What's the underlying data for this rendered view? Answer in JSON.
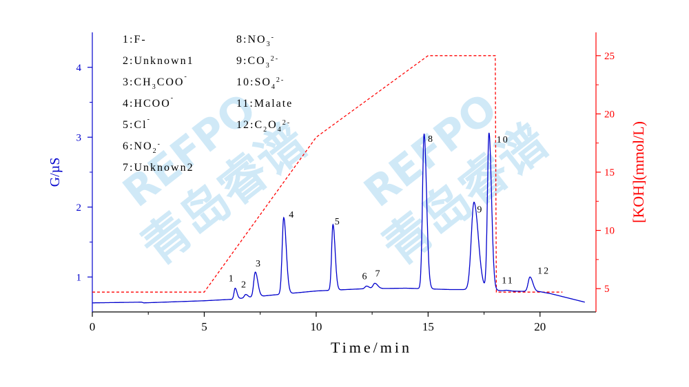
{
  "chart_data": {
    "type": "line",
    "xlabel": "Time/min",
    "ylabel_left": "G/µS",
    "ylabel_right": "[KOH](mmol/L)",
    "x_ticks": [
      "0",
      "5",
      "10",
      "15",
      "20"
    ],
    "y_left_ticks": [
      "1",
      "2",
      "3",
      "4"
    ],
    "y_right_ticks": [
      "5",
      "10",
      "15",
      "20",
      "25"
    ],
    "xlim": [
      0,
      22.5
    ],
    "ylim_left": [
      0.5,
      4.5
    ],
    "ylim_right": [
      3,
      27
    ],
    "colors": {
      "signal": "#0000cc",
      "koh": "#ff0000"
    },
    "series": [
      {
        "name": "Conductivity",
        "axis": "left",
        "baseline": [
          [
            0,
            0.63
          ],
          [
            2.2,
            0.64
          ],
          [
            2.3,
            0.63
          ],
          [
            5,
            0.66
          ],
          [
            6.2,
            0.68
          ],
          [
            8,
            0.74
          ],
          [
            10,
            0.8
          ],
          [
            12,
            0.83
          ],
          [
            14,
            0.84
          ],
          [
            16,
            0.82
          ],
          [
            17.5,
            0.82
          ],
          [
            18.5,
            0.8
          ],
          [
            20,
            0.79
          ],
          [
            20.5,
            0.76
          ],
          [
            22,
            0.64
          ]
        ],
        "peaks": [
          {
            "label": "1",
            "rt": 6.38,
            "height": 0.84
          },
          {
            "label": "2",
            "rt": 6.85,
            "height": 0.75
          },
          {
            "label": "3",
            "rt": 7.28,
            "height": 1.07
          },
          {
            "label": "4",
            "rt": 8.55,
            "height": 1.85
          },
          {
            "label": "5",
            "rt": 10.75,
            "height": 1.75
          },
          {
            "label": "6",
            "rt": 12.25,
            "height": 0.87
          },
          {
            "label": "7",
            "rt": 12.62,
            "height": 0.91
          },
          {
            "label": "8",
            "rt": 14.82,
            "height": 3.05
          },
          {
            "label": "9",
            "rt": 17.05,
            "height": 2.07
          },
          {
            "label": "10",
            "rt": 17.72,
            "height": 3.06
          },
          {
            "label": "11",
            "rt": 18.5,
            "height": 0.81
          },
          {
            "label": "12",
            "rt": 19.55,
            "height": 1.0
          }
        ]
      },
      {
        "name": "[KOH]",
        "axis": "right",
        "points": [
          [
            0,
            4.7
          ],
          [
            5,
            4.7
          ],
          [
            10,
            18
          ],
          [
            15,
            25
          ],
          [
            18,
            25
          ],
          [
            18.05,
            4.7
          ],
          [
            21,
            4.7
          ]
        ]
      }
    ],
    "legend": {
      "column1": [
        {
          "num": "1:",
          "parts": [
            [
              "F-",
              ""
            ]
          ]
        },
        {
          "num": "2:",
          "parts": [
            [
              "Unknown1",
              ""
            ]
          ]
        },
        {
          "num": "3:",
          "parts": [
            [
              "CH",
              ""
            ],
            [
              "3",
              "sub"
            ],
            [
              "COO",
              ""
            ],
            [
              "-",
              "sup"
            ]
          ]
        },
        {
          "num": "4:",
          "parts": [
            [
              "HCOO",
              ""
            ],
            [
              "-",
              "sup"
            ]
          ]
        },
        {
          "num": "5:",
          "parts": [
            [
              "Cl",
              ""
            ],
            [
              "-",
              "sup"
            ]
          ]
        },
        {
          "num": "6:",
          "parts": [
            [
              "NO",
              ""
            ],
            [
              "2",
              "sub"
            ],
            [
              "-",
              "sup"
            ]
          ]
        },
        {
          "num": "7:",
          "parts": [
            [
              "Unknown2",
              ""
            ]
          ]
        }
      ],
      "column2": [
        {
          "num": "8:",
          "parts": [
            [
              "NO",
              ""
            ],
            [
              "3",
              "sub"
            ],
            [
              "-",
              "sup"
            ]
          ]
        },
        {
          "num": "9:",
          "parts": [
            [
              "CO",
              ""
            ],
            [
              "3",
              "sub"
            ],
            [
              "2-",
              "sup"
            ]
          ]
        },
        {
          "num": "10:",
          "parts": [
            [
              "SO",
              ""
            ],
            [
              "4",
              "sub"
            ],
            [
              "2-",
              "sup"
            ]
          ]
        },
        {
          "num": "11:",
          "parts": [
            [
              "Malate",
              ""
            ]
          ]
        },
        {
          "num": "12:",
          "parts": [
            [
              "C",
              ""
            ],
            [
              "2",
              "sub"
            ],
            [
              "O",
              ""
            ],
            [
              "4",
              "sub"
            ],
            [
              "2-",
              "sup"
            ]
          ]
        }
      ]
    }
  },
  "watermark": {
    "lines": [
      {
        "text": "REFPO",
        "color": "#5ab4e6"
      },
      {
        "text": "青岛睿谱",
        "color": "#5ab4e6"
      }
    ]
  }
}
